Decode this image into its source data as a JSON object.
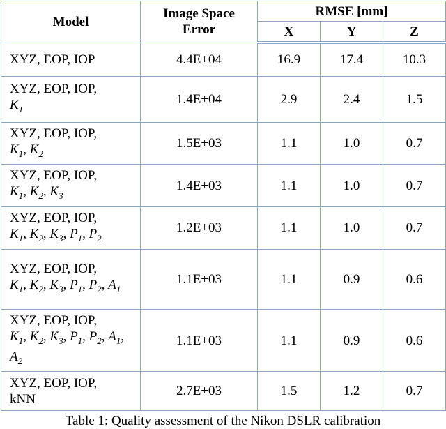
{
  "table": {
    "header": {
      "model": "Model",
      "error": "Image Space Error",
      "rmse": "RMSE [mm]",
      "axes": [
        "X",
        "Y",
        "Z"
      ]
    },
    "rows": [
      {
        "model": [
          "XYZ, EOP, IOP"
        ],
        "error": "4.4E+04",
        "rmse": [
          "16.9",
          "17.4",
          "10.3"
        ]
      },
      {
        "model": [
          "XYZ, EOP, IOP,",
          {
            "italic": "K",
            "sub": "1"
          }
        ],
        "error": "1.4E+04",
        "rmse": [
          "2.9",
          "2.4",
          "1.5"
        ]
      },
      {
        "model": [
          "XYZ, EOP, IOP,",
          {
            "italic": "K",
            "sub": "1"
          },
          ", ",
          {
            "italic": "K",
            "sub": "2"
          }
        ],
        "error": "1.5E+03",
        "rmse": [
          "1.1",
          "1.0",
          "0.7"
        ]
      },
      {
        "model": [
          "XYZ, EOP, IOP,",
          {
            "italic": "K",
            "sub": "1"
          },
          ", ",
          {
            "italic": "K",
            "sub": "2"
          },
          ", ",
          {
            "italic": "K",
            "sub": "3"
          }
        ],
        "error": "1.4E+03",
        "rmse": [
          "1.1",
          "1.0",
          "0.7"
        ]
      },
      {
        "model": [
          "XYZ, EOP, IOP,",
          {
            "italic": "K",
            "sub": "1"
          },
          ", ",
          {
            "italic": "K",
            "sub": "2"
          },
          ", ",
          {
            "italic": "K",
            "sub": "3"
          },
          ", ",
          {
            "italic": "P",
            "sub": "1"
          },
          ", ",
          {
            "italic": "P",
            "sub": "2"
          }
        ],
        "error": "1.2E+03",
        "rmse": [
          "1.1",
          "1.0",
          "0.7"
        ]
      },
      {
        "model": [
          "XYZ, EOP, IOP,",
          {
            "italic": "K",
            "sub": "1"
          },
          ", ",
          {
            "italic": "K",
            "sub": "2"
          },
          ", ",
          {
            "italic": "K",
            "sub": "3"
          },
          ", ",
          {
            "italic": "P",
            "sub": "1"
          },
          ", ",
          {
            "italic": "P",
            "sub": "2"
          },
          ", ",
          {
            "italic": "A",
            "sub": "1"
          }
        ],
        "error": "1.1E+03",
        "rmse": [
          "1.1",
          "0.9",
          "0.6"
        ]
      },
      {
        "model": [
          "XYZ, EOP, IOP,",
          {
            "italic": "K",
            "sub": "1"
          },
          ", ",
          {
            "italic": "K",
            "sub": "2"
          },
          ", ",
          {
            "italic": "K",
            "sub": "3"
          },
          ", ",
          {
            "italic": "P",
            "sub": "1"
          },
          ", ",
          {
            "italic": "P",
            "sub": "2"
          },
          ", ",
          {
            "italic": "A",
            "sub": "1"
          },
          ", ",
          {
            "italic": "A",
            "sub": "2"
          }
        ],
        "error": "1.1E+03",
        "rmse": [
          "1.1",
          "0.9",
          "0.6"
        ]
      },
      {
        "model": [
          "XYZ, EOP, IOP,",
          "kNN"
        ],
        "error": "2.7E+03",
        "rmse": [
          "1.5",
          "1.2",
          "0.7"
        ]
      }
    ]
  },
  "caption": "Table 1: Quality assessment of the Nikon DSLR calibration"
}
